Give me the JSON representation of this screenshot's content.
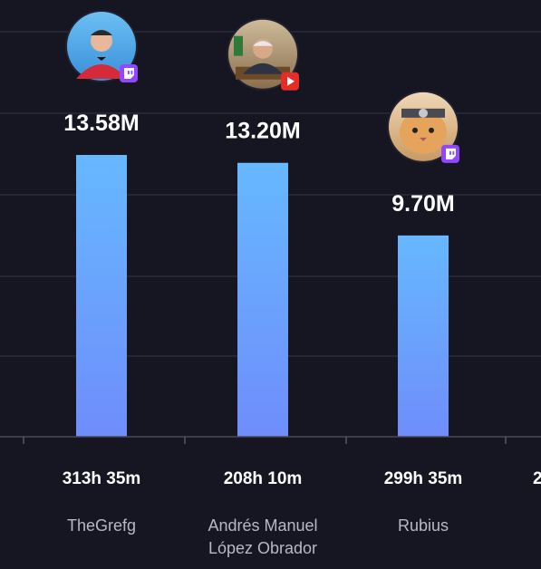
{
  "chart_data": {
    "type": "bar",
    "title": "",
    "xlabel": "",
    "ylabel": "",
    "ylim": [
      0,
      15
    ],
    "grid": true,
    "colors": {
      "bar_top": "#66b8ff",
      "bar_bottom": "#6f8dfb",
      "background": "#161522"
    },
    "categories": [
      {
        "name_lines": [
          "TheGrefg"
        ],
        "value": 13.58,
        "value_label": "13.58M",
        "hours_watched": "313h 35m",
        "platform": "twitch",
        "avatar_icon": "red-suit-streamer-avatar-icon"
      },
      {
        "name_lines": [
          "Andrés Manuel",
          "López Obrador"
        ],
        "value": 13.2,
        "value_label": "13.20M",
        "hours_watched": "208h 10m",
        "platform": "youtube",
        "avatar_icon": "politician-at-desk-avatar-icon"
      },
      {
        "name_lines": [
          "Rubius"
        ],
        "value": 9.7,
        "value_label": "9.70M",
        "hours_watched": "299h 35m",
        "platform": "twitch",
        "avatar_icon": "cat-headband-avatar-icon"
      }
    ],
    "cut_off_label": "2"
  }
}
